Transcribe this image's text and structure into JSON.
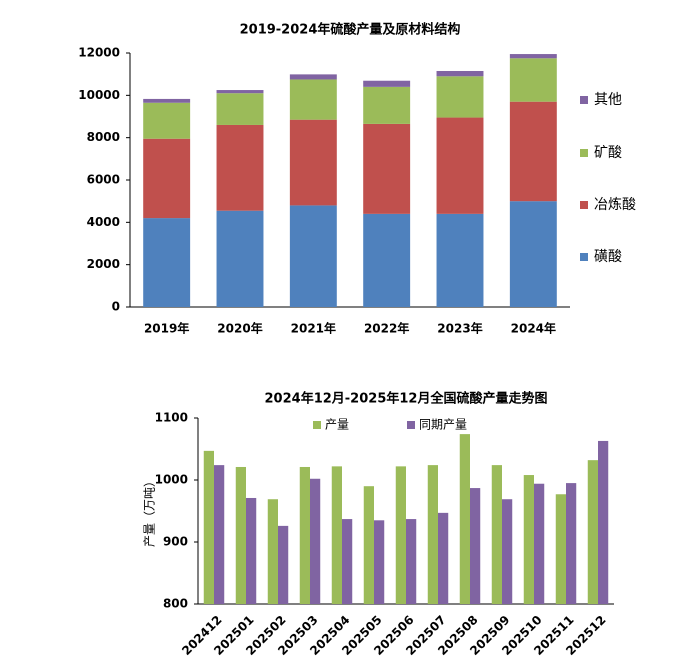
{
  "chart_data": [
    {
      "type": "stacked-bar",
      "title": "2019-2024年硫酸产量及原材料结构",
      "categories": [
        "2019年",
        "2020年",
        "2021年",
        "2022年",
        "2023年",
        "2024年"
      ],
      "series": [
        {
          "name": "磺酸",
          "color": "#4f81bd",
          "values": [
            4200,
            4550,
            4800,
            4400,
            4400,
            5000
          ]
        },
        {
          "name": "冶炼酸",
          "color": "#c0504d",
          "values": [
            3750,
            4050,
            4050,
            4250,
            4550,
            4700
          ]
        },
        {
          "name": "矿酸",
          "color": "#9bbb59",
          "values": [
            1700,
            1500,
            1900,
            1750,
            1950,
            2050
          ]
        },
        {
          "name": "其他",
          "color": "#8064a2",
          "values": [
            180,
            150,
            240,
            290,
            250,
            200
          ]
        }
      ],
      "ylim": [
        0,
        12000
      ],
      "yticks": [
        0,
        2000,
        4000,
        6000,
        8000,
        10000,
        12000
      ],
      "legend": "right"
    },
    {
      "type": "bar",
      "title": "2024年12月-2025年12月全国硫酸产量走势图",
      "y_label": "产量（万吨）",
      "categories": [
        "202412",
        "202501",
        "202502",
        "202503",
        "202504",
        "202505",
        "202506",
        "202507",
        "202508",
        "202509",
        "202510",
        "202511",
        "202512"
      ],
      "series": [
        {
          "name": "产量",
          "color": "#9bbb59",
          "values": [
            1047,
            1021,
            969,
            1021,
            1022,
            990,
            1022,
            1024,
            1074,
            1024,
            1008,
            977,
            1032
          ]
        },
        {
          "name": "同期产量",
          "color": "#8064a2",
          "values": [
            1024,
            971,
            926,
            1002,
            937,
            935,
            937,
            947,
            987,
            969,
            994,
            995,
            1063
          ]
        }
      ],
      "ylim": [
        800,
        1100
      ],
      "yticks": [
        800,
        900,
        1000,
        1100
      ],
      "legend": "top"
    }
  ]
}
